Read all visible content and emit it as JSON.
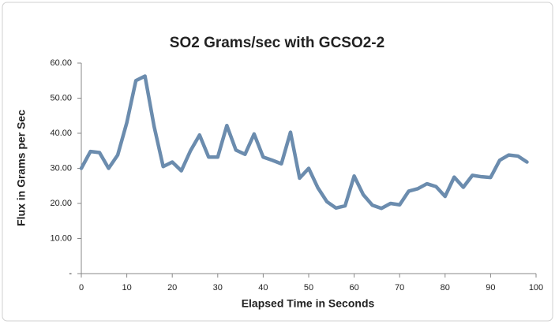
{
  "chart_data": {
    "type": "line",
    "title": "SO2 Grams/sec with GCSO2-2",
    "x_label": "Elapsed Time in Seconds",
    "y_label": "Flux in Grams per Sec",
    "x": [
      0,
      2,
      4,
      6,
      8,
      10,
      12,
      14,
      16,
      18,
      20,
      22,
      24,
      26,
      28,
      30,
      32,
      34,
      36,
      38,
      40,
      42,
      44,
      46,
      48,
      50,
      52,
      54,
      56,
      58,
      60,
      62,
      64,
      66,
      68,
      70,
      72,
      74,
      76,
      78,
      80,
      82,
      84,
      86,
      88,
      90,
      92,
      94,
      96,
      98
    ],
    "values": [
      30,
      34.8,
      34.5,
      30,
      33.8,
      43,
      55,
      56.3,
      42,
      30.5,
      31.8,
      29.3,
      35,
      39.5,
      33.2,
      33.2,
      42.2,
      35.2,
      34,
      39.8,
      33.2,
      32.3,
      31.3,
      40.3,
      27.2,
      30,
      24.5,
      20.5,
      18.7,
      19.3,
      27.8,
      22.5,
      19.5,
      18.6,
      20,
      19.6,
      23.5,
      24.2,
      25.6,
      24.8,
      22,
      27.5,
      24.6,
      28,
      27.6,
      27.4,
      32.3,
      33.8,
      33.5,
      31.8
    ],
    "color": "#6b8cae",
    "xlim": [
      0,
      100
    ],
    "xticks": [
      0,
      10,
      20,
      30,
      40,
      50,
      60,
      70,
      80,
      90,
      100
    ],
    "ylim": [
      0,
      60
    ],
    "yticks": [
      {
        "value": 0,
        "label": "-"
      },
      {
        "value": 10,
        "label": "10.00"
      },
      {
        "value": 20,
        "label": "20.00"
      },
      {
        "value": 30,
        "label": "30.00"
      },
      {
        "value": 40,
        "label": "40.00"
      },
      {
        "value": 50,
        "label": "50.00"
      },
      {
        "value": 60,
        "label": "60.00"
      }
    ],
    "grid": false
  }
}
